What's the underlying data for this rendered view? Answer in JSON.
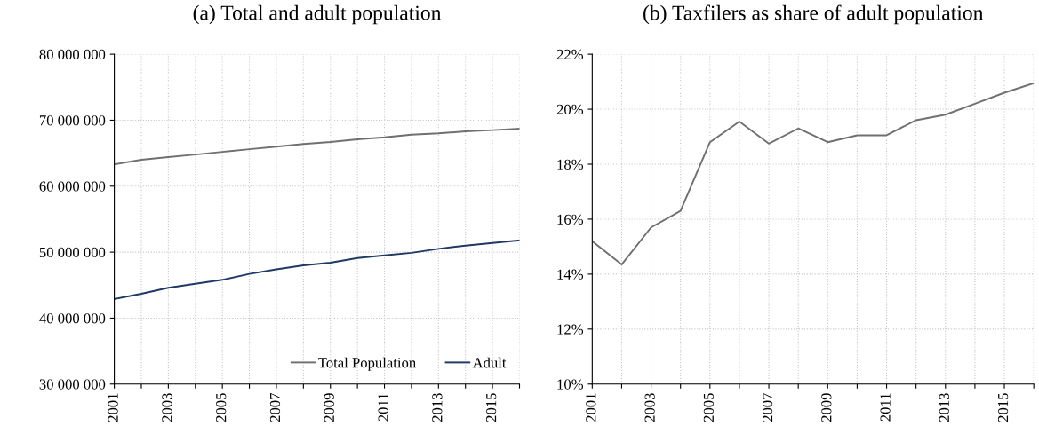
{
  "chart_data": [
    {
      "type": "line",
      "title": "(a) Total and adult population",
      "x": [
        2001,
        2002,
        2003,
        2004,
        2005,
        2006,
        2007,
        2008,
        2009,
        2010,
        2011,
        2012,
        2013,
        2014,
        2015,
        2016
      ],
      "series": [
        {
          "name": "Total Population",
          "color": "#707070",
          "values": [
            63300000,
            64000000,
            64400000,
            64800000,
            65200000,
            65600000,
            66000000,
            66400000,
            66700000,
            67100000,
            67400000,
            67800000,
            68000000,
            68300000,
            68500000,
            68700000
          ]
        },
        {
          "name": "Adult",
          "color": "#1f3864",
          "values": [
            42900000,
            43700000,
            44600000,
            45200000,
            45800000,
            46700000,
            47400000,
            48000000,
            48400000,
            49100000,
            49500000,
            49900000,
            50500000,
            51000000,
            51400000,
            51800000
          ]
        }
      ],
      "xlim": [
        2001,
        2016
      ],
      "xticks": [
        2001,
        {
          "value": 2002,
          "label": null
        },
        2003,
        {
          "value": 2004,
          "label": null
        },
        2005,
        {
          "value": 2006,
          "label": null
        },
        2007,
        {
          "value": 2008,
          "label": null
        },
        2009,
        {
          "value": 2010,
          "label": null
        },
        2011,
        {
          "value": 2012,
          "label": null
        },
        2013,
        {
          "value": 2014,
          "label": null
        },
        2015,
        {
          "value": 2016,
          "label": null
        }
      ],
      "ylim": [
        30000000,
        80000000
      ],
      "yticks": [
        {
          "value": 30000000,
          "label": "30 000 000"
        },
        {
          "value": 40000000,
          "label": "40 000 000"
        },
        {
          "value": 50000000,
          "label": "50 000 000"
        },
        {
          "value": 60000000,
          "label": "60 000 000"
        },
        {
          "value": 70000000,
          "label": "70 000 000"
        },
        {
          "value": 80000000,
          "label": "80 000 000"
        }
      ],
      "grid": true,
      "legend": "bottom right"
    },
    {
      "type": "line",
      "title": "(b) Taxfilers as share of adult population",
      "x": [
        2001,
        2002,
        2003,
        2004,
        2005,
        2006,
        2007,
        2008,
        2009,
        2010,
        2011,
        2012,
        2013,
        2014,
        2015,
        2016
      ],
      "series": [
        {
          "color": "#707070",
          "values": [
            15.2,
            14.35,
            15.7,
            16.3,
            18.8,
            19.55,
            18.75,
            19.3,
            18.8,
            19.05,
            19.05,
            19.6,
            19.8,
            20.2,
            20.6,
            20.95
          ]
        }
      ],
      "xlim": [
        2001,
        2016
      ],
      "xticks": [
        2001,
        {
          "value": 2002,
          "label": null
        },
        2003,
        {
          "value": 2004,
          "label": null
        },
        2005,
        {
          "value": 2006,
          "label": null
        },
        2007,
        {
          "value": 2008,
          "label": null
        },
        2009,
        {
          "value": 2010,
          "label": null
        },
        2011,
        {
          "value": 2012,
          "label": null
        },
        2013,
        {
          "value": 2014,
          "label": null
        },
        2015,
        {
          "value": 2016,
          "label": null
        }
      ],
      "ylim": [
        10,
        22
      ],
      "yticks": [
        {
          "value": 10,
          "label": "10%"
        },
        {
          "value": 12,
          "label": "12%"
        },
        {
          "value": 14,
          "label": "14%"
        },
        {
          "value": 16,
          "label": "16%"
        },
        {
          "value": 18,
          "label": "18%"
        },
        {
          "value": 20,
          "label": "20%"
        },
        {
          "value": 22,
          "label": "22%"
        }
      ],
      "grid": true
    }
  ]
}
